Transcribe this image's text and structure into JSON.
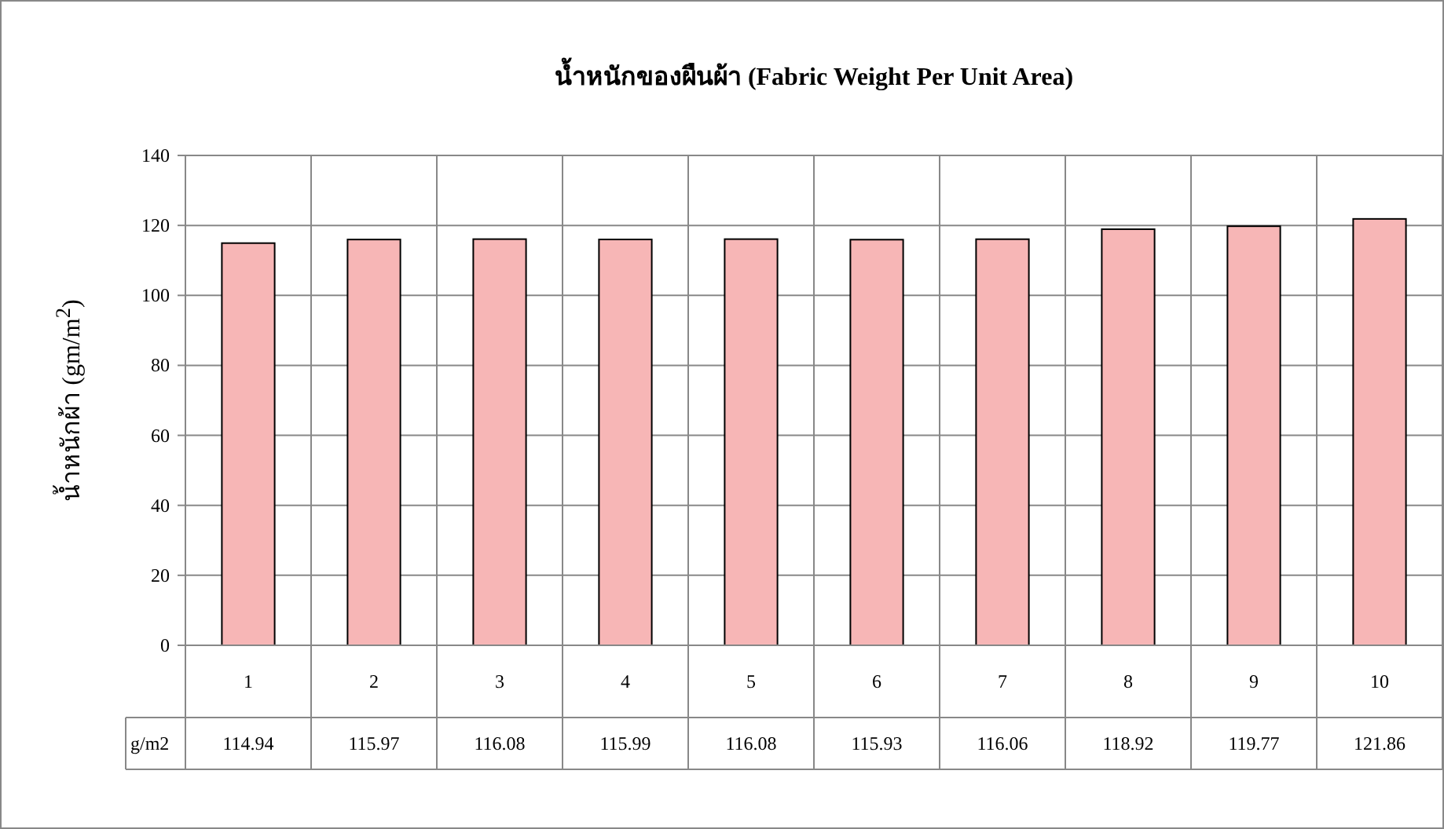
{
  "chart_data": {
    "type": "bar",
    "title": "น้ำหนักของผืนผ้า (Fabric Weight Per Unit Area)",
    "ylabel": "น้ำหนักผ้า (gm/m$^{2}$)",
    "categories": [
      "1",
      "2",
      "3",
      "4",
      "5",
      "6",
      "7",
      "8",
      "9",
      "10"
    ],
    "series": [
      {
        "name": "g/m2",
        "color": "#f7b6b6",
        "values": [
          114.94,
          115.97,
          116.08,
          115.99,
          116.08,
          115.93,
          116.06,
          118.92,
          119.77,
          121.86
        ]
      }
    ],
    "ylim": [
      0,
      140
    ],
    "yticks": [
      0,
      20,
      40,
      60,
      80,
      100,
      120,
      140
    ],
    "grid": true,
    "data_labels": true
  }
}
